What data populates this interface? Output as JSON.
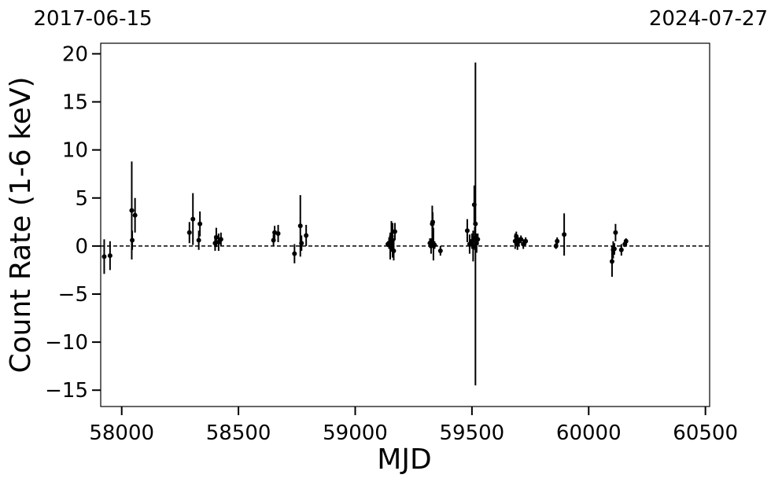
{
  "chart_data": {
    "type": "errorbar",
    "xlabel": "MJD",
    "ylabel": "Count Rate (1-6 keV)",
    "top_labels": [
      "2017-06-15",
      "2024-07-27"
    ],
    "xlim": [
      57910,
      60518
    ],
    "ylim": [
      -16.7,
      21.1
    ],
    "xticks": [
      58000,
      58500,
      59000,
      59500,
      60000,
      60500
    ],
    "yticks": [
      {
        "value": -15,
        "label": "−15"
      },
      {
        "value": -10,
        "label": "−10"
      },
      {
        "value": -5,
        "label": "−5"
      },
      0,
      5,
      10,
      15,
      20
    ],
    "reference_line": 0,
    "color": "#000000",
    "series": [
      {
        "x": [
          57925,
          57950,
          58043,
          58045,
          58057,
          58290,
          58305,
          58330,
          58335,
          58400,
          58405,
          58415,
          58425,
          58650,
          58655,
          58670,
          58740,
          58765,
          58770,
          58790,
          59140,
          59145,
          59150,
          59155,
          59160,
          59165,
          59170,
          59320,
          59325,
          59330,
          59332,
          59335,
          59340,
          59365,
          59480,
          59490,
          59500,
          59505,
          59510,
          59512,
          59515,
          59520,
          59525,
          59685,
          59690,
          59695,
          59700,
          59710,
          59720,
          59730,
          59860,
          59865,
          59895,
          60100,
          60105,
          60110,
          60115,
          60140,
          60155,
          60160
        ],
        "values": [
          -1.1,
          -1.0,
          3.7,
          0.6,
          3.2,
          1.4,
          2.8,
          0.6,
          2.3,
          0.3,
          0.9,
          0.4,
          0.7,
          0.6,
          1.4,
          1.3,
          -0.8,
          2.1,
          0.3,
          1.1,
          0.2,
          0.3,
          0.0,
          1.0,
          0.6,
          -0.5,
          1.5,
          0.3,
          0.0,
          2.3,
          2.5,
          0.2,
          0.1,
          -0.5,
          1.6,
          0.2,
          0.5,
          0.0,
          4.3,
          0.8,
          2.3,
          0.3,
          0.7,
          0.5,
          1.0,
          0.2,
          0.5,
          0.7,
          0.2,
          0.5,
          0.0,
          0.5,
          1.2,
          -1.6,
          -0.4,
          -0.3,
          1.4,
          -0.4,
          0.2,
          0.5
        ],
        "errors": [
          1.8,
          1.5,
          5.1,
          1.0,
          1.8,
          1.1,
          2.7,
          1.0,
          1.3,
          0.8,
          1.0,
          0.9,
          0.7,
          0.6,
          0.7,
          0.9,
          1.0,
          3.2,
          0.8,
          1.1,
          0.3,
          0.6,
          1.4,
          1.6,
          1.8,
          1.0,
          0.9,
          0.5,
          0.8,
          1.9,
          1.0,
          1.7,
          0.4,
          0.5,
          1.2,
          1.0,
          0.8,
          1.6,
          2.0,
          1.2,
          16.8,
          1.0,
          0.6,
          0.8,
          0.5,
          0.6,
          0.4,
          0.4,
          0.5,
          0.4,
          0.3,
          0.4,
          2.2,
          1.6,
          0.9,
          0.6,
          0.9,
          0.6,
          0.3,
          0.3
        ]
      }
    ]
  }
}
